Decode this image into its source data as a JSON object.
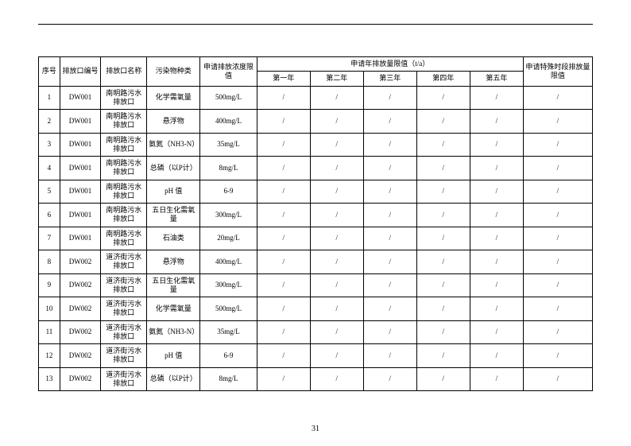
{
  "pageNumber": "31",
  "header": {
    "seq": "序号",
    "outletCode": "排放口编号",
    "outletName": "排放口名称",
    "pollutant": "污染物种类",
    "concLimit": "申请排放浓度限值",
    "annualGroup": "申请年排放量限值（t/a）",
    "year1": "第一年",
    "year2": "第二年",
    "year3": "第三年",
    "year4": "第四年",
    "year5": "第五年",
    "specialLimit": "申请特殊时段排放量限值"
  },
  "slash": "/",
  "rows": [
    {
      "seq": "1",
      "code": "DW001",
      "name": "南明路污水排放口",
      "pollutant": "化学需氧量",
      "limit": "500mg/L"
    },
    {
      "seq": "2",
      "code": "DW001",
      "name": "南明路污水排放口",
      "pollutant": "悬浮物",
      "limit": "400mg/L"
    },
    {
      "seq": "3",
      "code": "DW001",
      "name": "南明路污水排放口",
      "pollutant": "氨氮（NH3-N）",
      "limit": "35mg/L"
    },
    {
      "seq": "4",
      "code": "DW001",
      "name": "南明路污水排放口",
      "pollutant": "总磷（以P计）",
      "limit": "8mg/L"
    },
    {
      "seq": "5",
      "code": "DW001",
      "name": "南明路污水排放口",
      "pollutant": "pH 值",
      "limit": "6-9"
    },
    {
      "seq": "6",
      "code": "DW001",
      "name": "南明路污水排放口",
      "pollutant": "五日生化需氧量",
      "limit": "300mg/L"
    },
    {
      "seq": "7",
      "code": "DW001",
      "name": "南明路污水排放口",
      "pollutant": "石油类",
      "limit": "20mg/L"
    },
    {
      "seq": "8",
      "code": "DW002",
      "name": "道济街污水排放口",
      "pollutant": "悬浮物",
      "limit": "400mg/L"
    },
    {
      "seq": "9",
      "code": "DW002",
      "name": "道济街污水排放口",
      "pollutant": "五日生化需氧量",
      "limit": "300mg/L"
    },
    {
      "seq": "10",
      "code": "DW002",
      "name": "道济街污水排放口",
      "pollutant": "化学需氧量",
      "limit": "500mg/L"
    },
    {
      "seq": "11",
      "code": "DW002",
      "name": "道济街污水排放口",
      "pollutant": "氨氮（NH3-N）",
      "limit": "35mg/L"
    },
    {
      "seq": "12",
      "code": "DW002",
      "name": "道济街污水排放口",
      "pollutant": "pH 值",
      "limit": "6-9"
    },
    {
      "seq": "13",
      "code": "DW002",
      "name": "道济街污水排放口",
      "pollutant": "总磷（以P计）",
      "limit": "8mg/L"
    }
  ]
}
